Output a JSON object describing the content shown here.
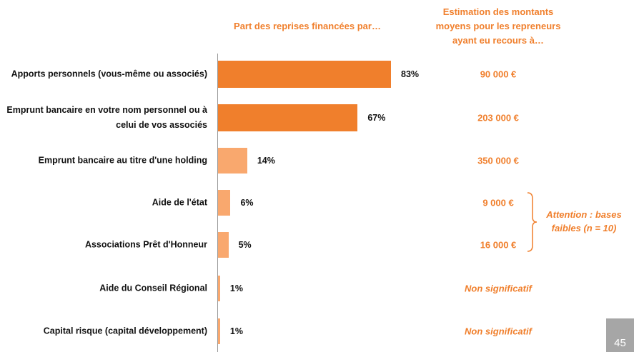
{
  "chart_data": {
    "type": "bar",
    "orientation": "horizontal",
    "column_titles": [
      "Part des reprises financées par…",
      "Estimation des montants moyens pour les repreneurs ayant eu recours à…"
    ],
    "categories": [
      "Apports personnels (vous-même ou associés)",
      "Emprunt bancaire en votre nom personnel ou à celui de vos associés",
      "Emprunt bancaire au titre d'une holding",
      "Aide de l'état",
      "Associations Prêt d'Honneur",
      "Aide du Conseil Régional",
      "Capital risque (capital développement)"
    ],
    "values": [
      83,
      67,
      14,
      6,
      5,
      1,
      1
    ],
    "value_labels": [
      "83%",
      "67%",
      "14%",
      "6%",
      "5%",
      "1%",
      "1%"
    ],
    "colors": [
      "#f07f2c",
      "#f07f2c",
      "#f9a86e",
      "#f9a86e",
      "#f9a86e",
      "#f9a86e",
      "#f9a86e"
    ],
    "amounts": [
      "90 000 €",
      "203 000 €",
      "350 000 €",
      "9 000 €",
      "16 000 €",
      "Non significatif",
      "Non significatif"
    ],
    "annotation": "Attention : bases faibles (n = 10)",
    "page_number": "45"
  }
}
